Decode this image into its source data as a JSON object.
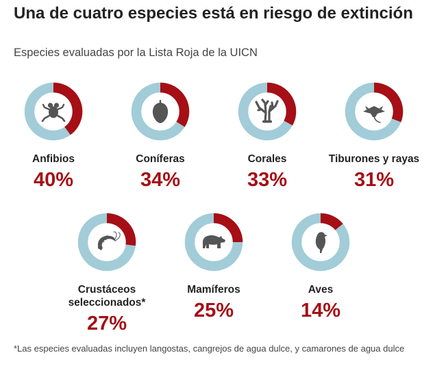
{
  "title": "Una de cuatro especies está en riesgo de extinción",
  "subtitle": "Especies evaluadas por la Lista Roja de la UICN",
  "footnote": "*Las especies evaluadas incluyen langostas, cangrejos de agua dulce, y camarones de agua dulce",
  "colors": {
    "risk": "#a50f15",
    "rest": "#a2ccd8",
    "icon": "#555555",
    "text": "#222222"
  },
  "chart_data": {
    "type": "pie",
    "title": "Una de cuatro especies está en riesgo de extinción",
    "subtitle": "Especies evaluadas por la Lista Roja de la UICN",
    "items": [
      {
        "label": "Anfibios",
        "value": 40,
        "value_label": "40%",
        "icon": "frog-icon"
      },
      {
        "label": "Coníferas",
        "value": 34,
        "value_label": "34%",
        "icon": "pinecone-icon"
      },
      {
        "label": "Corales",
        "value": 33,
        "value_label": "33%",
        "icon": "coral-icon"
      },
      {
        "label": "Tiburones y rayas",
        "value": 31,
        "value_label": "31%",
        "icon": "ray-icon"
      },
      {
        "label": "Crustáceos seleccionados*",
        "value": 27,
        "value_label": "27%",
        "icon": "shrimp-icon"
      },
      {
        "label": "Mamíferos",
        "value": 25,
        "value_label": "25%",
        "icon": "bear-icon"
      },
      {
        "label": "Aves",
        "value": 14,
        "value_label": "14%",
        "icon": "bird-icon"
      }
    ]
  }
}
